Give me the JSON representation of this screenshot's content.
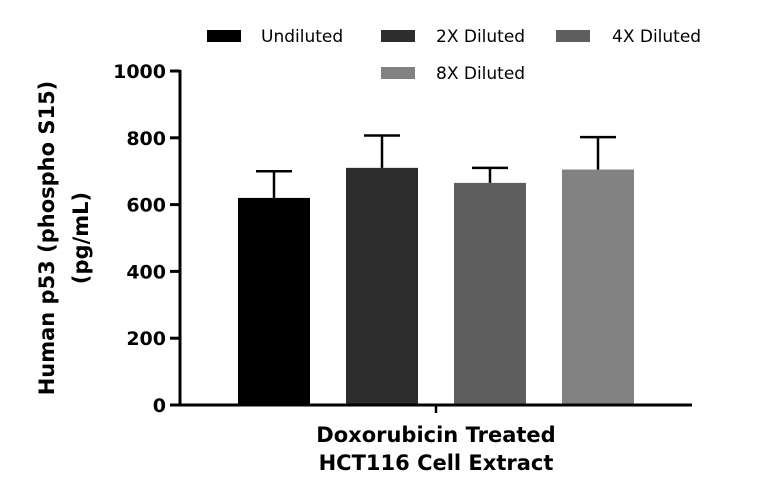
{
  "chart_data": {
    "type": "bar",
    "categories": [
      "Doxorubicin Treated HCT116 Cell Extract"
    ],
    "series": [
      {
        "name": "Undiluted",
        "value": 620,
        "error": 80,
        "color": "#000000"
      },
      {
        "name": "2X Diluted",
        "value": 710,
        "error": 97,
        "color": "#2d2d2d"
      },
      {
        "name": "4X Diluted",
        "value": 665,
        "error": 45,
        "color": "#5e5e5e"
      },
      {
        "name": "8X Diluted",
        "value": 705,
        "error": 97,
        "color": "#828282"
      }
    ],
    "ylabel_lines": [
      "Human p53 (phospho S15)",
      "(pg/mL)"
    ],
    "xlabel_lines": [
      "Doxorubicin Treated",
      "HCT116 Cell Extract"
    ],
    "ylim": [
      0,
      1000
    ],
    "yticks": [
      "0",
      "200",
      "400",
      "600",
      "800",
      "1000"
    ],
    "legend_position": "top",
    "grid": false
  }
}
